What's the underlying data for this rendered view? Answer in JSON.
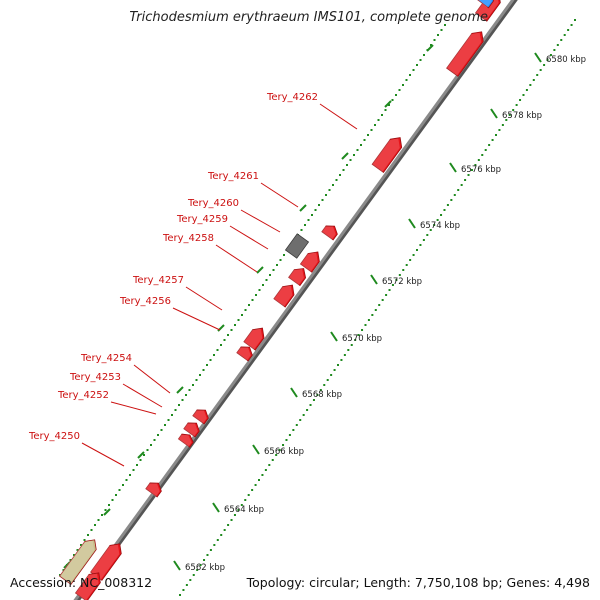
{
  "title": "Trichodesmium erythraeum IMS101, complete genome",
  "footer": {
    "accession": "Accession: NC_008312",
    "summary": "Topology: circular; Length: 7,750,108 bp; Genes: 4,498"
  },
  "colors": {
    "backbone": "#8a8a8a",
    "gene_forward": "#e8141a",
    "gene_label": "#cc1111",
    "gene_grey": "#6e6e6e",
    "gene_tan": "#c8bf8a",
    "gene_blue": "#1a8cff",
    "tick": "#1f8a1f",
    "tick_label": "#222222"
  },
  "scale": {
    "unit": "kbp",
    "labels": [
      "6562 kbp",
      "6564 kbp",
      "6566 kbp",
      "6568 kbp",
      "6570 kbp",
      "6572 kbp",
      "6574 kbp",
      "6576 kbp",
      "6578 kbp",
      "6580 kbp"
    ]
  },
  "gene_labels": [
    "Tery_4262",
    "Tery_4261",
    "Tery_4260",
    "Tery_4259",
    "Tery_4258",
    "Tery_4257",
    "Tery_4256",
    "Tery_4254",
    "Tery_4253",
    "Tery_4252",
    "Tery_4250"
  ]
}
